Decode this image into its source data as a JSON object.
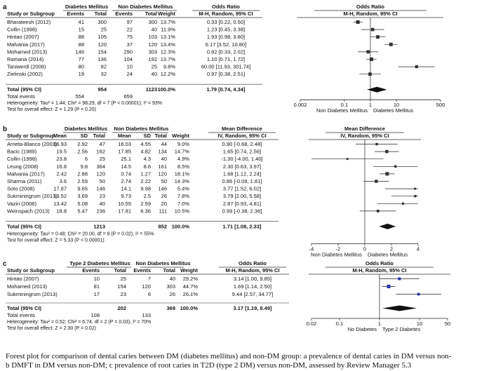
{
  "caption": {
    "line1": "Forest plot for comparison of dental caries between DM (diabetes mellitus) and non-DM group: a prevalence of dental caries in DM versus non-",
    "line2": "b DMFT in DM versus non-DM; c prevalence of root caries in T2D (type 2 DM) versus non-DM, assessed by Review Manager 5.3"
  },
  "chart_data": [
    {
      "panel": "a",
      "type": "forest",
      "group1_label": "Diabetes Mellitus",
      "group2_label": "Non Diabetes Mellitus",
      "columns": [
        "Study or Subgroup",
        "Events",
        "Total",
        "Events",
        "Total",
        "Weight",
        "M-H, Random, 95% CI"
      ],
      "measure_label": "Odds Ratio",
      "measure_method": "M-H, Random, 95% CI",
      "scale": "log",
      "xlim": [
        0.002,
        500
      ],
      "ticks": [
        0.002,
        0.1,
        1,
        10,
        500
      ],
      "tick_labels": [
        "0.002",
        "0.1",
        "1",
        "10",
        "500"
      ],
      "favours_left": "Non Diabetes Mellitus",
      "favours_right": "Diabetes Mellitus",
      "studies": [
        {
          "name": "Bharateesh (2012)",
          "c1": "41",
          "c2": "300",
          "c3": "97",
          "c4": "300",
          "weight": "13.7%",
          "ci_text": "0.33 [0.22, 0.50]",
          "est": 0.33,
          "lo": 0.22,
          "hi": 0.5
        },
        {
          "name": "Collin (1998)",
          "c1": "15",
          "c2": "25",
          "c3": "22",
          "c4": "40",
          "weight": "11.9%",
          "ci_text": "1.23 [0.45, 3.38]",
          "est": 1.23,
          "lo": 0.45,
          "hi": 3.38
        },
        {
          "name": "Hintao (2007)",
          "c1": "88",
          "c2": "105",
          "c3": "75",
          "c4": "103",
          "weight": "13.1%",
          "ci_text": "1.93 [0.98, 3.80]",
          "est": 1.93,
          "lo": 0.98,
          "hi": 3.8
        },
        {
          "name": "Malvania (2017)",
          "c1": "88",
          "c2": "120",
          "c3": "37",
          "c4": "120",
          "weight": "13.4%",
          "ci_text": "6.17 [3.52, 10.80]",
          "est": 6.17,
          "lo": 3.52,
          "hi": 10.8
        },
        {
          "name": "Mohamed (2013)",
          "c1": "146",
          "c2": "154",
          "c3": "290",
          "c4": "303",
          "weight": "12.3%",
          "ci_text": "0.82 [0.33, 2.02]",
          "est": 0.82,
          "lo": 0.33,
          "hi": 2.02
        },
        {
          "name": "Ramana (2014)",
          "c1": "77",
          "c2": "136",
          "c3": "104",
          "c4": "192",
          "weight": "13.7%",
          "ci_text": "1.10 [0.71, 1.72]",
          "est": 1.1,
          "lo": 0.71,
          "hi": 1.72
        },
        {
          "name": "Taniwerdi (2008)",
          "c1": "80",
          "c2": "82",
          "c3": "10",
          "c4": "25",
          "weight": "9.8%",
          "ci_text": "60.00 [11.93, 301.74]",
          "est": 60.0,
          "lo": 11.93,
          "hi": 301.74
        },
        {
          "name": "Zielinski (2002)",
          "c1": "19",
          "c2": "32",
          "c3": "24",
          "c4": "40",
          "weight": "12.2%",
          "ci_text": "0.97 [0.38, 2.51]",
          "est": 0.97,
          "lo": 0.38,
          "hi": 2.51
        }
      ],
      "total": {
        "label": "Total (95% CI)",
        "c2": "954",
        "c4": "1123",
        "weight": "100.0%",
        "ci_text": "1.79 [0.74, 4.34]",
        "est": 1.79,
        "lo": 0.74,
        "hi": 4.34
      },
      "total_events": {
        "label": "Total events",
        "c1": "554",
        "c3": "659"
      },
      "heterogeneity": "Heterogeneity: Tau² = 1.44; Chi² = 98.29, df = 7 (P < 0.00001); I² = 93%",
      "overall_effect": "Test for overall effect: Z = 1.29 (P = 0.20)"
    },
    {
      "panel": "b",
      "type": "forest",
      "group1_label": "Diabetes Mellitus",
      "group2_label": "Non Diabetes Mellitus",
      "columns": [
        "Study or Subgroup",
        "Mean",
        "SD",
        "Total",
        "Mean",
        "SD",
        "Total",
        "Weight",
        "IV, Random, 95% CI"
      ],
      "measure_label": "Mean Difference",
      "measure_method": "IV, Random, 95% CI",
      "scale": "linear",
      "xlim": [
        -4,
        4
      ],
      "ticks": [
        -4,
        -2,
        0,
        2,
        4
      ],
      "tick_labels": [
        "-4",
        "-2",
        "0",
        "2",
        "4"
      ],
      "favours_left": "Non Diabetes Mellitus",
      "favours_right": "Diabetes Mellitus",
      "studies": [
        {
          "name": "Arrieta-Blanco (2003)",
          "m1": "16.93",
          "s1": "2.92",
          "n1": "47",
          "m2": "16.03",
          "s2": "4.55",
          "n2": "44",
          "weight": "9.0%",
          "ci_text": "0.90 [-0.68, 2.48]",
          "est": 0.9,
          "lo": -0.68,
          "hi": 2.48
        },
        {
          "name": "Bacic (1989)",
          "m1": "19.5",
          "s1": "2.56",
          "n1": "162",
          "m2": "17.85",
          "s2": "4.82",
          "n2": "134",
          "weight": "14.7%",
          "ci_text": "1.65 [0.74, 2.56]",
          "est": 1.65,
          "lo": 0.74,
          "hi": 2.56
        },
        {
          "name": "Collin (1998)",
          "m1": "23.8",
          "s1": "6",
          "n1": "25",
          "m2": "25.1",
          "s2": "4.3",
          "n2": "40",
          "weight": "4.9%",
          "ci_text": "-1.30 [-4.00, 1.40]",
          "est": -1.3,
          "lo": -4.0,
          "hi": 1.4
        },
        {
          "name": "Leung (2008)",
          "m1": "16.8",
          "s1": "9.8",
          "n1": "364",
          "m2": "14.5",
          "s2": "8.6",
          "n2": "161",
          "weight": "8.5%",
          "ci_text": "2.30 [0.63, 3.97]",
          "est": 2.3,
          "lo": 0.63,
          "hi": 3.97
        },
        {
          "name": "Malvania (2017)",
          "m1": "2.42",
          "s1": "2.88",
          "n1": "120",
          "m2": "0.74",
          "s2": "1.27",
          "n2": "120",
          "weight": "18.1%",
          "ci_text": "1.68 [1.12, 2.24]",
          "est": 1.68,
          "lo": 1.12,
          "hi": 2.24
        },
        {
          "name": "Sharma (2011)",
          "m1": "3.6",
          "s1": "2.59",
          "n1": "50",
          "m2": "2.74",
          "s2": "2.22",
          "n2": "50",
          "weight": "14.3%",
          "ci_text": "0.86 [-0.09, 1.81]",
          "est": 0.86,
          "lo": -0.09,
          "hi": 1.81
        },
        {
          "name": "Soto (2008)",
          "m1": "17.87",
          "s1": "9.65",
          "n1": "146",
          "m2": "14.1",
          "s2": "9.98",
          "n2": "146",
          "weight": "5.4%",
          "ci_text": "3.77 [1.52, 6.02]",
          "est": 3.77,
          "lo": 1.52,
          "hi": 6.02
        },
        {
          "name": "Sukminingrum (2013)",
          "m1": "13.52",
          "s1": "3.69",
          "n1": "23",
          "m2": "9.73",
          "s2": "2.5",
          "n2": "26",
          "weight": "7.8%",
          "ci_text": "3.79 [2.00, 5.58]",
          "est": 3.79,
          "lo": 2.0,
          "hi": 5.58
        },
        {
          "name": "Vaziri (2008)",
          "m1": "13.42",
          "s1": "5.08",
          "n1": "40",
          "m2": "10.55",
          "s2": "2.59",
          "n2": "20",
          "weight": "7.0%",
          "ci_text": "2.87 [0.93, 4.81]",
          "est": 2.87,
          "lo": 0.93,
          "hi": 4.81
        },
        {
          "name": "Weinspach (2013)",
          "m1": "18.8",
          "s1": "5.47",
          "n1": "236",
          "m2": "17.81",
          "s2": "6.36",
          "n2": "111",
          "weight": "10.5%",
          "ci_text": "0.99 [-0.38, 2.36]",
          "est": 0.99,
          "lo": -0.38,
          "hi": 2.36
        }
      ],
      "total": {
        "label": "Total (95% CI)",
        "n1": "1213",
        "n2": "852",
        "weight": "100.0%",
        "ci_text": "1.71 [1.08, 2.33]",
        "est": 1.71,
        "lo": 1.08,
        "hi": 2.33
      },
      "heterogeneity": "Heterogeneity: Tau² = 0.48; Chi² = 20.00, df = 9 (P = 0.02); I² = 55%",
      "overall_effect": "Test for overall effect: Z = 5.33 (P < 0.00001)"
    },
    {
      "panel": "c",
      "type": "forest",
      "group1_label": "Type 2 Diabetes Mellitus",
      "group2_label": "Non Diabetes Mellitus",
      "columns": [
        "Study or Subgroup",
        "Events",
        "Total",
        "Events",
        "Total",
        "Weight",
        "M-H, Random, 95% CI"
      ],
      "measure_label": "Odds Ratio",
      "measure_method": "M-H, Random, 95% CI",
      "scale": "log",
      "xlim": [
        0.02,
        50
      ],
      "ticks": [
        0.02,
        0.1,
        1,
        10,
        50
      ],
      "tick_labels": [
        "0.02",
        "0.1",
        "1",
        "10",
        "50"
      ],
      "favours_left": "No Diabetes",
      "favours_right": "Type 2 Diabetes",
      "studies": [
        {
          "name": "Hintao (2007)",
          "c1": "10",
          "c2": "25",
          "c3": "7",
          "c4": "40",
          "weight": "29.2%",
          "ci_text": "3.14 [1.00, 9.85]",
          "est": 3.14,
          "lo": 1.0,
          "hi": 9.85
        },
        {
          "name": "Mohamed (2013)",
          "c1": "81",
          "c2": "154",
          "c3": "120",
          "c4": "303",
          "weight": "44.7%",
          "ci_text": "1.69 [1.14, 2.50]",
          "est": 1.69,
          "lo": 1.14,
          "hi": 2.5
        },
        {
          "name": "Sukminingrum (2013)",
          "c1": "17",
          "c2": "23",
          "c3": "6",
          "c4": "26",
          "weight": "26.1%",
          "ci_text": "9.44 [2.57, 34.77]",
          "est": 9.44,
          "lo": 2.57,
          "hi": 34.77
        }
      ],
      "total": {
        "label": "Total (95% CI)",
        "c2": "202",
        "c4": "369",
        "weight": "100.0%",
        "ci_text": "3.17 [1.19, 8.49]",
        "est": 3.17,
        "lo": 1.19,
        "hi": 8.49
      },
      "total_events": {
        "label": "Total events",
        "c1": "108",
        "c3": "133"
      },
      "heterogeneity": "Heterogeneity: Tau² = 0.52; Chi² = 6.74, df = 2 (P = 0.03); I² = 70%",
      "overall_effect": "Test for overall effect: Z = 2.30 (P = 0.02)"
    }
  ]
}
